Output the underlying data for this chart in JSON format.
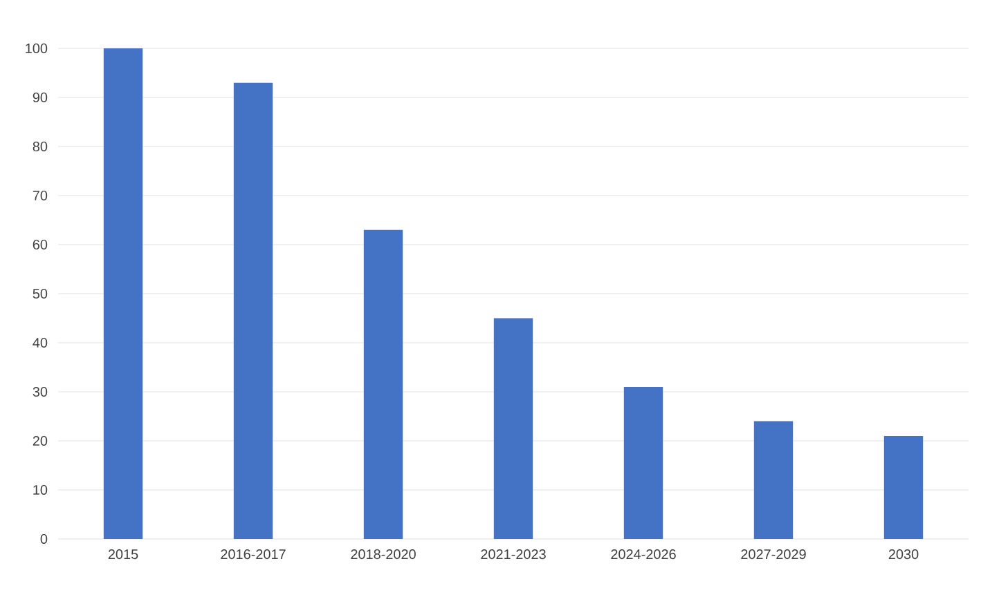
{
  "chart_data": {
    "type": "bar",
    "categories": [
      "2015",
      "2016-2017",
      "2018-2020",
      "2021-2023",
      "2024-2026",
      "2027-2029",
      "2030"
    ],
    "values": [
      100,
      93,
      63,
      45,
      31,
      24,
      21
    ],
    "color": "#4472c4",
    "ylim": [
      0,
      100
    ],
    "yticks": [
      0,
      10,
      20,
      30,
      40,
      50,
      60,
      70,
      80,
      90,
      100
    ],
    "grid": "y"
  }
}
